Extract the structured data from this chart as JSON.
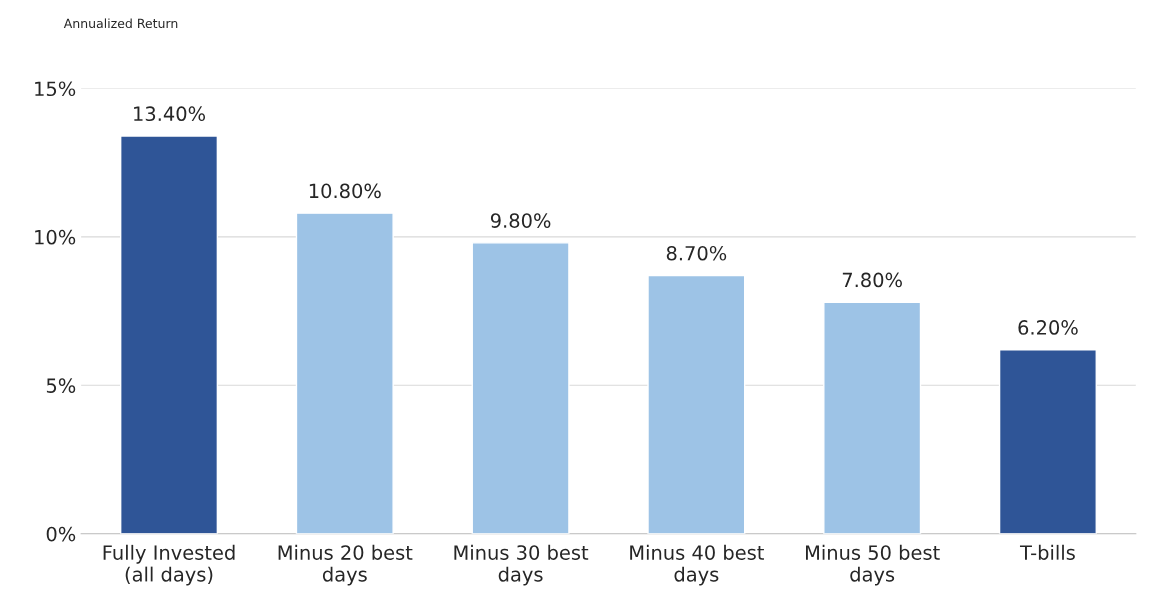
{
  "chart_data": {
    "type": "bar",
    "ylabel": "Annualized Return",
    "categories": [
      "Fully Invested\n(all days)",
      "Minus 20 best\ndays",
      "Minus 30 best\ndays",
      "Minus 40 best\ndays",
      "Minus 50 best\ndays",
      "T-bills"
    ],
    "values": [
      13.4,
      10.8,
      9.8,
      8.7,
      7.8,
      6.2
    ],
    "colors": [
      "#2f5597",
      "#9dc3e6",
      "#9dc3e6",
      "#9dc3e6",
      "#9dc3e6",
      "#2f5597"
    ],
    "value_labels": [
      "13.40%",
      "10.80%",
      "9.80%",
      "8.70%",
      "7.80%",
      "6.20%"
    ],
    "ylim": [
      0,
      15
    ],
    "yticks": [
      {
        "value": 0,
        "label": "0%"
      },
      {
        "value": 5,
        "label": "5%"
      },
      {
        "value": 10,
        "label": "10%"
      },
      {
        "value": 15,
        "label": "15%"
      }
    ],
    "grid": "y",
    "legend": false
  }
}
